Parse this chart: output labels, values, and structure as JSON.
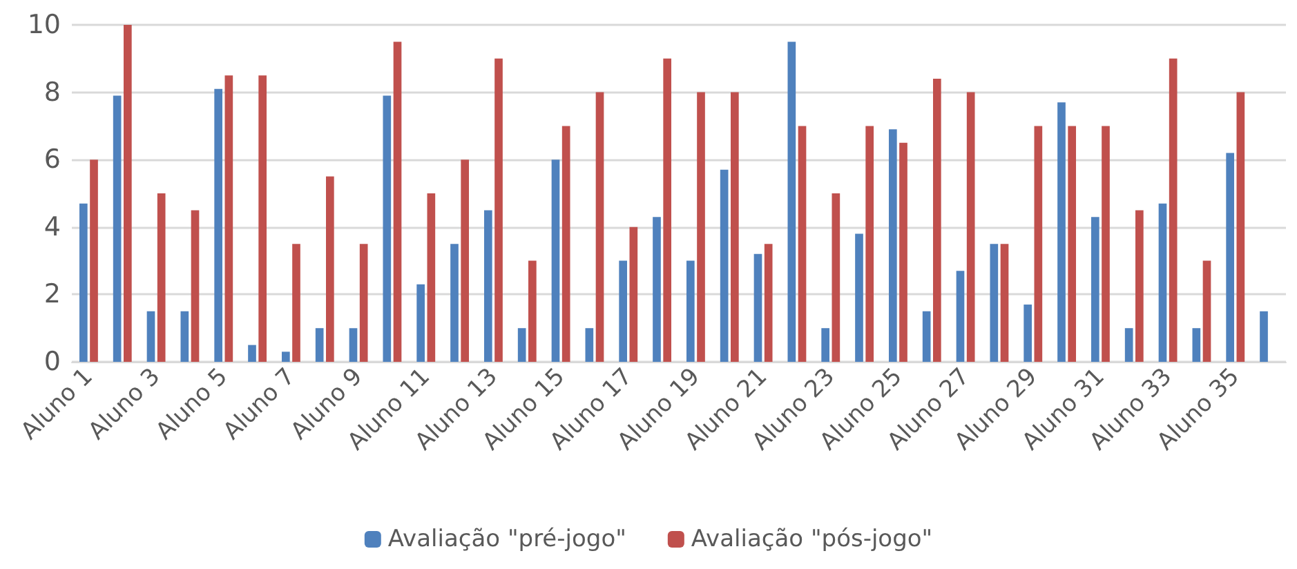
{
  "chart_data": {
    "type": "bar",
    "categories": [
      "Aluno 1",
      null,
      "Aluno 3",
      null,
      "Aluno 5",
      null,
      "Aluno 7",
      null,
      "Aluno 9",
      null,
      "Aluno 11",
      null,
      "Aluno 13",
      null,
      "Aluno 15",
      null,
      "Aluno 17",
      null,
      "Aluno 19",
      null,
      "Aluno 21",
      null,
      "Aluno 23",
      null,
      "Aluno 25",
      null,
      "Aluno 27",
      null,
      "Aluno 29",
      null,
      "Aluno 31",
      null,
      "Aluno 33",
      null,
      "Aluno 35",
      null
    ],
    "series": [
      {
        "name": "Avaliação \"pré-jogo\"",
        "color": "#4f81bd",
        "values": [
          4.7,
          7.9,
          1.5,
          1.5,
          8.1,
          0.5,
          0.3,
          1,
          1,
          7.9,
          2.3,
          3.5,
          4.5,
          1,
          6,
          1,
          3,
          4.3,
          3,
          5.7,
          3.2,
          9.5,
          1,
          3.8,
          6.9,
          1.5,
          2.7,
          3.5,
          1.7,
          7.7,
          4.3,
          1,
          4.7,
          1,
          6.2,
          1.5
        ]
      },
      {
        "name": "Avaliação \"pós-jogo\"",
        "color": "#c0504d",
        "values": [
          6,
          10,
          5,
          4.5,
          8.5,
          8.5,
          3.5,
          5.5,
          3.5,
          9.5,
          5,
          6,
          9,
          3,
          7,
          8,
          4,
          9,
          8,
          8,
          3.5,
          7,
          5,
          7,
          6.5,
          8.4,
          8,
          3.5,
          7,
          7,
          7,
          4.5,
          9,
          3,
          8,
          null
        ]
      }
    ],
    "ylim": [
      0,
      10
    ],
    "yticks": [
      0,
      2,
      4,
      6,
      8,
      10
    ],
    "grid": "y",
    "legend": "bottom"
  }
}
